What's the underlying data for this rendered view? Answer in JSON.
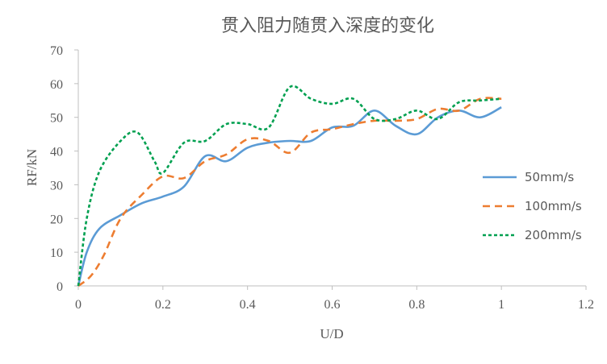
{
  "chart_data": {
    "type": "line",
    "title": "贯入阻力随贯入深度的变化",
    "xlabel": "U/D",
    "ylabel": "RF/kN",
    "xlim": [
      0,
      1.2
    ],
    "ylim": [
      0,
      70
    ],
    "xticks": [
      "0",
      "0.2",
      "0.4",
      "0.6",
      "0.8",
      "1",
      "1.2"
    ],
    "yticks": [
      "0",
      "10",
      "20",
      "30",
      "40",
      "50",
      "60",
      "70"
    ],
    "grid": false,
    "legend_position": "right",
    "series": [
      {
        "name": "50mm/s",
        "color": "#5b9bd5",
        "dash": "solid",
        "points": [
          [
            0,
            0
          ],
          [
            0.02,
            10
          ],
          [
            0.05,
            17
          ],
          [
            0.1,
            21
          ],
          [
            0.15,
            24.5
          ],
          [
            0.2,
            26.5
          ],
          [
            0.25,
            29.5
          ],
          [
            0.3,
            38.5
          ],
          [
            0.35,
            37
          ],
          [
            0.4,
            41
          ],
          [
            0.45,
            42.5
          ],
          [
            0.5,
            43
          ],
          [
            0.55,
            43
          ],
          [
            0.6,
            47
          ],
          [
            0.65,
            47.5
          ],
          [
            0.7,
            52
          ],
          [
            0.75,
            47.5
          ],
          [
            0.8,
            45
          ],
          [
            0.85,
            50
          ],
          [
            0.9,
            52
          ],
          [
            0.95,
            50
          ],
          [
            1.0,
            53
          ]
        ]
      },
      {
        "name": "100mm/s",
        "color": "#ed7d31",
        "dash": "long-dash",
        "points": [
          [
            0,
            0
          ],
          [
            0.03,
            3
          ],
          [
            0.06,
            9
          ],
          [
            0.1,
            20
          ],
          [
            0.15,
            27
          ],
          [
            0.2,
            32.5
          ],
          [
            0.25,
            32
          ],
          [
            0.3,
            37
          ],
          [
            0.35,
            39
          ],
          [
            0.4,
            43.5
          ],
          [
            0.45,
            43
          ],
          [
            0.5,
            39.5
          ],
          [
            0.55,
            45.5
          ],
          [
            0.6,
            46.5
          ],
          [
            0.65,
            48
          ],
          [
            0.7,
            49
          ],
          [
            0.75,
            49
          ],
          [
            0.8,
            49.5
          ],
          [
            0.85,
            52.5
          ],
          [
            0.9,
            52
          ],
          [
            0.95,
            55.5
          ],
          [
            1.0,
            55.5
          ]
        ]
      },
      {
        "name": "200mm/s",
        "color": "#00a050",
        "dash": "short-dash",
        "points": [
          [
            0,
            0
          ],
          [
            0.02,
            20
          ],
          [
            0.05,
            34
          ],
          [
            0.1,
            43
          ],
          [
            0.14,
            45.5
          ],
          [
            0.18,
            37
          ],
          [
            0.2,
            33.5
          ],
          [
            0.25,
            42.5
          ],
          [
            0.3,
            43
          ],
          [
            0.35,
            48
          ],
          [
            0.4,
            48
          ],
          [
            0.45,
            47
          ],
          [
            0.5,
            59
          ],
          [
            0.55,
            55.5
          ],
          [
            0.6,
            54
          ],
          [
            0.65,
            55.5
          ],
          [
            0.7,
            49.5
          ],
          [
            0.75,
            49.5
          ],
          [
            0.8,
            52
          ],
          [
            0.85,
            49.5
          ],
          [
            0.9,
            54.5
          ],
          [
            0.95,
            55
          ],
          [
            1.0,
            55.5
          ]
        ]
      }
    ]
  }
}
